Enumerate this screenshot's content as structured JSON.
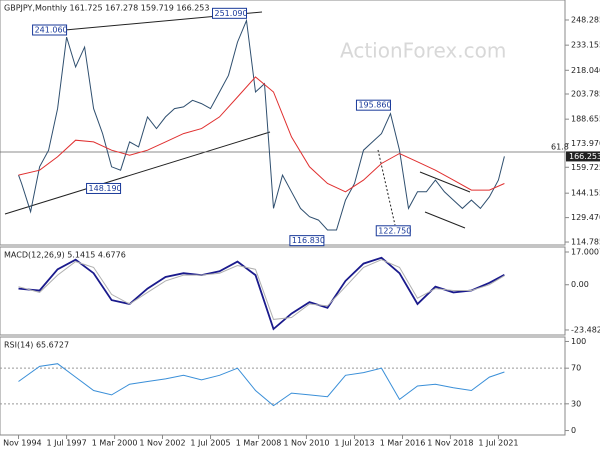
{
  "chart_data": [
    {
      "type": "line",
      "title": "GBPJPY,Monthly  161.725 167.278 159.719 166.253",
      "watermark": "ActionForex.com",
      "xlim": [
        1993.8,
        2025.2
      ],
      "ylim": [
        113.0,
        260.3
      ],
      "yticks": [
        {
          "value": 248.285,
          "label": "248.285"
        },
        {
          "value": 233.155,
          "label": "233.155"
        },
        {
          "value": 218.04,
          "label": "218.040"
        },
        {
          "value": 203.785,
          "label": "203.785"
        },
        {
          "value": 188.655,
          "label": "188.655"
        },
        {
          "value": 173.97,
          "label": "173.970"
        },
        {
          "value": 159.725,
          "label": "159.725"
        },
        {
          "value": 144.155,
          "label": "144.155"
        },
        {
          "value": 129.47,
          "label": "129.470"
        },
        {
          "value": 114.785,
          "label": "114.785"
        }
      ],
      "last_value": {
        "value": 166.253,
        "label": "166.253"
      },
      "level": {
        "value": 168.9,
        "label": "61.8"
      },
      "series": [
        {
          "name": "GBPJPY",
          "color": "#2f4f6f",
          "x": [
            1994.83,
            1995.0,
            1995.5,
            1996.0,
            1996.5,
            1997.0,
            1997.5,
            1998.0,
            1998.5,
            1999.0,
            1999.5,
            2000.0,
            2000.5,
            2001.0,
            2001.5,
            2002.0,
            2002.5,
            2003.0,
            2003.5,
            2004.0,
            2004.5,
            2005.0,
            2005.5,
            2006.0,
            2006.5,
            2007.0,
            2007.5,
            2008.0,
            2008.5,
            2009.0,
            2009.5,
            2010.0,
            2010.5,
            2011.0,
            2011.5,
            2012.0,
            2012.5,
            2013.0,
            2013.5,
            2014.0,
            2014.5,
            2015.0,
            2015.5,
            2016.0,
            2016.5,
            2017.0,
            2017.5,
            2018.0,
            2018.5,
            2019.0,
            2019.5,
            2020.0,
            2020.5,
            2021.0,
            2021.5,
            2021.83
          ],
          "values": [
            155,
            150,
            133,
            160,
            170,
            195,
            238,
            220,
            232,
            195,
            180,
            160,
            158,
            175,
            172,
            190,
            183,
            190,
            195,
            196,
            200,
            198,
            195,
            205,
            215,
            235,
            248,
            205,
            210,
            135,
            155,
            145,
            135,
            130,
            128,
            122,
            122,
            140,
            150,
            170,
            175,
            180,
            192,
            170,
            135,
            145,
            145,
            152,
            145,
            140,
            135,
            140,
            135,
            142,
            152,
            166.253
          ]
        },
        {
          "name": "MA",
          "color": "#e03030",
          "x": [
            1994.83,
            1996.0,
            1997.0,
            1998.0,
            1999.0,
            2000.0,
            2001.0,
            2002.0,
            2003.0,
            2004.0,
            2005.0,
            2006.0,
            2007.0,
            2008.0,
            2009.0,
            2010.0,
            2011.0,
            2012.0,
            2013.0,
            2014.0,
            2015.0,
            2016.0,
            2017.0,
            2018.0,
            2019.0,
            2020.0,
            2021.0,
            2021.83
          ],
          "values": [
            155,
            158,
            166,
            176,
            175,
            170,
            167,
            170,
            175,
            180,
            183,
            190,
            202,
            214,
            205,
            178,
            160,
            150,
            145,
            152,
            162,
            168,
            163,
            158,
            152,
            146,
            146,
            150
          ]
        }
      ],
      "annotations": [
        {
          "label": "241.060",
          "x": 1997.5,
          "y": 241.06
        },
        {
          "label": "251.090",
          "x": 2007.5,
          "y": 251.09
        },
        {
          "label": "195.860",
          "x": 2015.5,
          "y": 195.86
        },
        {
          "label": "148.190",
          "x": 2000.5,
          "y": 148.19
        },
        {
          "label": "116.830",
          "x": 2011.8,
          "y": 116.83
        },
        {
          "label": "122.750",
          "x": 2016.6,
          "y": 122.75
        }
      ]
    },
    {
      "type": "line",
      "title": "MACD(12,26,9) 5.1415 4.6776",
      "xlim": [
        1993.8,
        2025.2
      ],
      "ylim": [
        -26.1,
        19.6
      ],
      "yticks": [
        {
          "value": 17.0007,
          "label": "17.0007"
        },
        {
          "value": 0,
          "label": "0.00"
        },
        {
          "value": -23.4823,
          "label": "-23.4823"
        }
      ],
      "series": [
        {
          "name": "MACD",
          "color": "#1a1a8c",
          "x": [
            1994.83,
            1996.0,
            1997.0,
            1998.0,
            1999.0,
            2000.0,
            2001.0,
            2002.0,
            2003.0,
            2004.0,
            2005.0,
            2006.0,
            2007.0,
            2008.0,
            2009.0,
            2010.0,
            2011.0,
            2012.0,
            2013.0,
            2014.0,
            2015.0,
            2016.0,
            2017.0,
            2018.0,
            2019.0,
            2020.0,
            2021.0,
            2021.83
          ],
          "values": [
            -2,
            -3,
            8,
            13,
            6,
            -8,
            -10,
            -2,
            4,
            6,
            5,
            7,
            12,
            5,
            -23,
            -15,
            -9,
            -12,
            2,
            11,
            14,
            6,
            -10,
            -1,
            -4,
            -3,
            1,
            5.1415
          ]
        },
        {
          "name": "Signal",
          "color": "#b0b0b0",
          "x": [
            1994.83,
            1996.0,
            1997.0,
            1998.0,
            1999.0,
            2000.0,
            2001.0,
            2002.0,
            2003.0,
            2004.0,
            2005.0,
            2006.0,
            2007.0,
            2008.0,
            2009.0,
            2010.0,
            2011.0,
            2012.0,
            2013.0,
            2014.0,
            2015.0,
            2016.0,
            2017.0,
            2018.0,
            2019.0,
            2020.0,
            2021.0,
            2021.83
          ],
          "values": [
            -1,
            -4,
            5,
            12,
            9,
            -5,
            -10,
            -4,
            2,
            5,
            5,
            6,
            10,
            8,
            -18,
            -17,
            -10,
            -11,
            -1,
            9,
            13,
            9,
            -7,
            -2,
            -3,
            -3,
            0,
            4.6776
          ]
        }
      ]
    },
    {
      "type": "line",
      "title": "RSI(14) 65.6727",
      "xlim": [
        1993.8,
        2025.2
      ],
      "ylim": [
        -5,
        105
      ],
      "yticks": [
        100,
        70,
        30,
        0
      ],
      "levels": [
        70,
        30
      ],
      "series": [
        {
          "name": "RSI",
          "color": "#3a8fd8",
          "x": [
            1994.83,
            1996.0,
            1997.0,
            1998.0,
            1999.0,
            2000.0,
            2001.0,
            2002.0,
            2003.0,
            2004.0,
            2005.0,
            2006.0,
            2007.0,
            2008.0,
            2009.0,
            2010.0,
            2011.0,
            2012.0,
            2013.0,
            2014.0,
            2015.0,
            2016.0,
            2017.0,
            2018.0,
            2019.0,
            2020.0,
            2021.0,
            2021.83
          ],
          "values": [
            55,
            72,
            75,
            60,
            45,
            40,
            52,
            55,
            58,
            62,
            57,
            62,
            70,
            45,
            28,
            42,
            40,
            38,
            62,
            65,
            70,
            35,
            50,
            52,
            48,
            45,
            60,
            65.6727
          ]
        }
      ]
    }
  ],
  "x_axis": {
    "ticks": [
      {
        "value": 1994.83,
        "label": "1 Nov 1994"
      },
      {
        "value": 1997.5,
        "label": "1 Jul 1997"
      },
      {
        "value": 2000.17,
        "label": "1 Mar 2000"
      },
      {
        "value": 2002.83,
        "label": "1 Nov 2002"
      },
      {
        "value": 2005.5,
        "label": "1 Jul 2005"
      },
      {
        "value": 2008.17,
        "label": "1 Mar 2008"
      },
      {
        "value": 2010.83,
        "label": "1 Nov 2010"
      },
      {
        "value": 2013.5,
        "label": "1 Jul 2013"
      },
      {
        "value": 2016.17,
        "label": "1 Mar 2016"
      },
      {
        "value": 2018.83,
        "label": "1 Nov 2018"
      },
      {
        "value": 2021.5,
        "label": "1 Jul 2021"
      }
    ]
  }
}
